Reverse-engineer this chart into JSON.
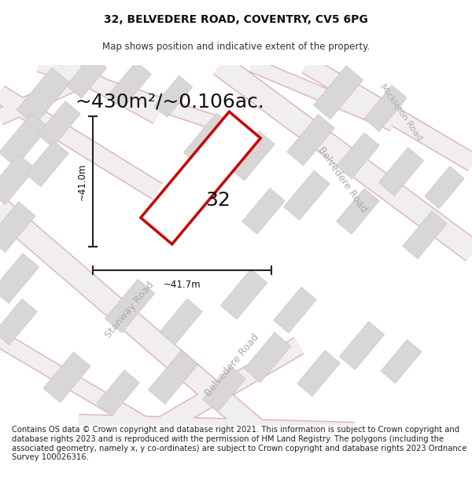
{
  "title": "32, BELVEDERE ROAD, COVENTRY, CV5 6PG",
  "subtitle": "Map shows position and indicative extent of the property.",
  "area_text": "~430m²/~0.106ac.",
  "label_number": "32",
  "dim_height": "~41.0m",
  "dim_width": "~41.7m",
  "footer": "Contains OS data © Crown copyright and database right 2021. This information is subject to Crown copyright and database rights 2023 and is reproduced with the permission of HM Land Registry. The polygons (including the associated geometry, namely x, y co-ordinates) are subject to Crown copyright and database rights 2023 Ordnance Survey 100026316.",
  "bg_color": "#ffffff",
  "map_bg": "#eeecec",
  "plot_color": "#cc0000",
  "plot_fill": "#ffffff",
  "road_fill": "#f0eeee",
  "road_edge": "#e0b0b0",
  "building_fill": "#d8d6d6",
  "building_edge": "#c8c6c6",
  "road_label_color": "#b0aaaa",
  "dim_color": "#222222",
  "title_fontsize": 10,
  "subtitle_fontsize": 8.5,
  "area_fontsize": 18,
  "label_fontsize": 18,
  "footer_fontsize": 7.2,
  "road_label_fontsize": 9
}
